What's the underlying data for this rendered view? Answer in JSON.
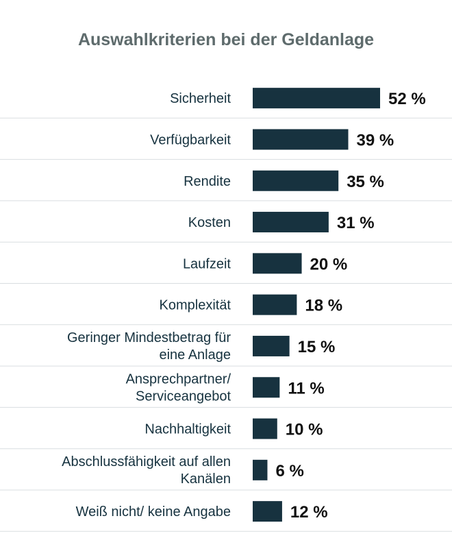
{
  "chart_data": {
    "type": "bar",
    "orientation": "horizontal",
    "title": "Auswahlkriterien bei der Geldanlage",
    "categories": [
      [
        "Sicherheit"
      ],
      [
        "Verfügbarkeit"
      ],
      [
        "Rendite"
      ],
      [
        "Kosten"
      ],
      [
        "Laufzeit"
      ],
      [
        "Komplexität"
      ],
      [
        "Geringer Mindestbetrag für",
        "eine Anlage"
      ],
      [
        "Ansprechpartner/",
        "Serviceangebot"
      ],
      [
        "Nachhaltigkeit"
      ],
      [
        "Abschlussfähigkeit auf allen",
        "Kanälen"
      ],
      [
        "Weiß nicht/ keine Angabe"
      ]
    ],
    "values": [
      52,
      39,
      35,
      31,
      20,
      18,
      15,
      11,
      10,
      6,
      12
    ],
    "value_labels": [
      "52 %",
      "39 %",
      "35 %",
      "31 %",
      "20 %",
      "18 %",
      "15 %",
      "11 %",
      "10 %",
      "6 %",
      "12 %"
    ],
    "unit": "%",
    "xlim": [
      0,
      52
    ],
    "bar_color": "#17323f",
    "title_color": "#5e6b6c",
    "grid": false,
    "legend": "none"
  }
}
